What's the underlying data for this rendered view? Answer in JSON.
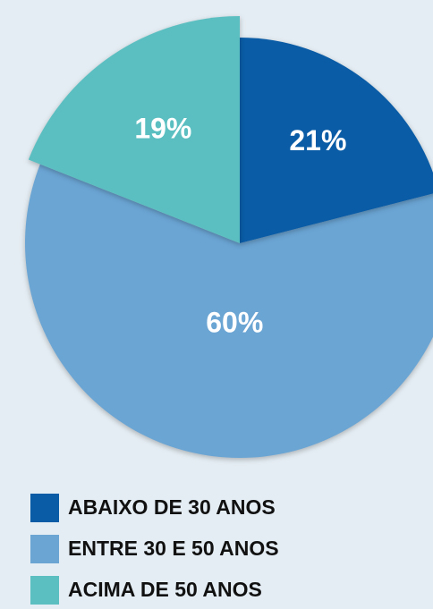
{
  "chart_data": {
    "type": "pie",
    "categories": [
      "ABAIXO DE 30 ANOS",
      "ENTRE 30 E 50 ANOS",
      "ACIMA DE 50 ANOS"
    ],
    "values": [
      21,
      60,
      19
    ],
    "value_labels": [
      "21%",
      "60%",
      "19%"
    ],
    "colors": [
      "#0a5ca6",
      "#6ba5d4",
      "#5bbfc1"
    ],
    "legend": "bottom-left"
  }
}
